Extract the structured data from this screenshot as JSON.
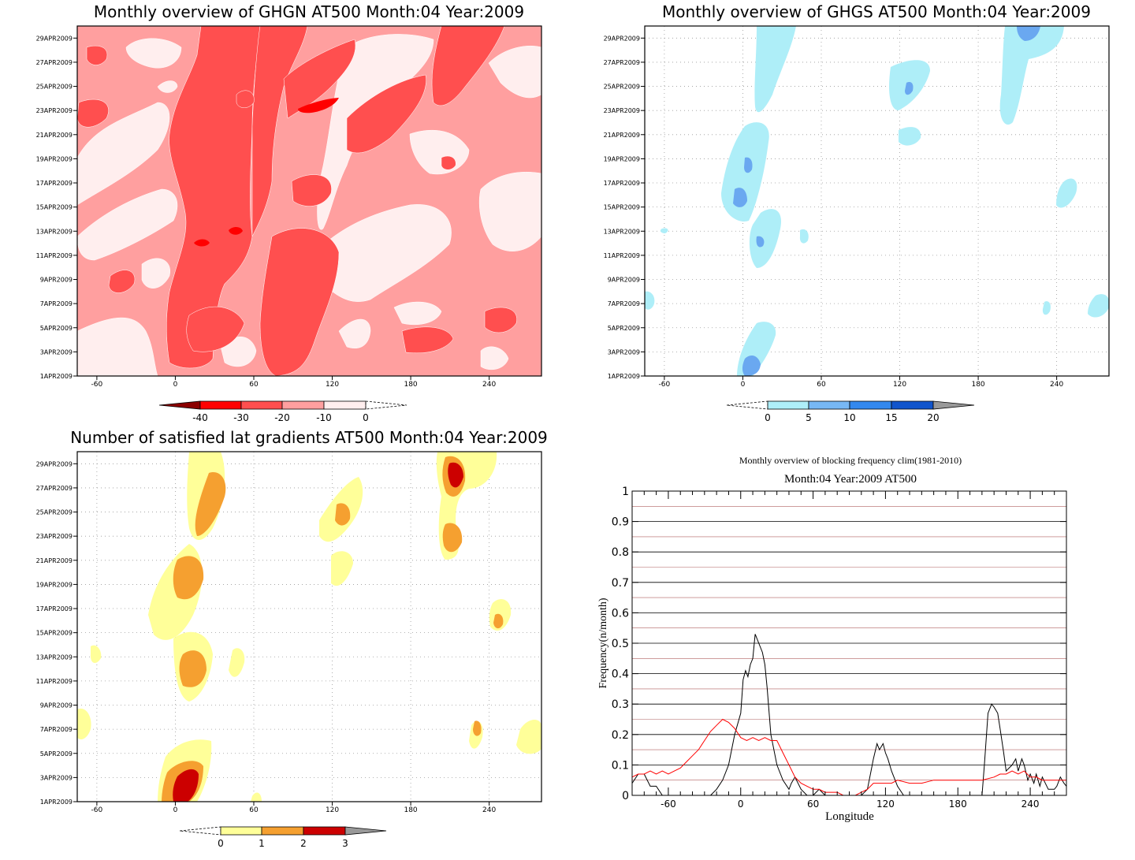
{
  "chart_data": [
    {
      "type": "heatmap",
      "title": "Monthly overview of GHGN AT500 Month:04 Year:2009",
      "x_ticks": [
        "-60",
        "0",
        "60",
        "120",
        "180",
        "240"
      ],
      "x_tick_values": [
        -60,
        0,
        60,
        120,
        180,
        240
      ],
      "xlim": [
        -75,
        280
      ],
      "y_ticks": [
        "1APR2009",
        "3APR2009",
        "5APR2009",
        "7APR2009",
        "9APR2009",
        "11APR2009",
        "13APR2009",
        "15APR2009",
        "17APR2009",
        "19APR2009",
        "21APR2009",
        "23APR2009",
        "25APR2009",
        "27APR2009",
        "29APR2009"
      ],
      "y_tick_values": [
        1,
        3,
        5,
        7,
        9,
        11,
        13,
        15,
        17,
        19,
        21,
        23,
        25,
        27,
        29
      ],
      "ylim": [
        1,
        30
      ],
      "colorbar_labels": [
        "-40",
        "-30",
        "-20",
        "-10",
        "0"
      ],
      "colorbar_colors": [
        "#8b0000",
        "#ff0000",
        "#ff4f4f",
        "#ff9f9f",
        "#ffeeee"
      ],
      "fill_colors": {
        "light": "#ffeeee",
        "mid": "#ff9f9f",
        "strong": "#ff4f4f",
        "peak": "#ff0000"
      }
    },
    {
      "type": "heatmap",
      "title": "Monthly overview of GHGS AT500 Month:04 Year:2009",
      "x_ticks": [
        "-60",
        "0",
        "60",
        "120",
        "180",
        "240"
      ],
      "x_tick_values": [
        -60,
        0,
        60,
        120,
        180,
        240
      ],
      "xlim": [
        -75,
        280
      ],
      "y_ticks": [
        "1APR2009",
        "3APR2009",
        "5APR2009",
        "7APR2009",
        "9APR2009",
        "11APR2009",
        "13APR2009",
        "15APR2009",
        "17APR2009",
        "19APR2009",
        "21APR2009",
        "23APR2009",
        "25APR2009",
        "27APR2009",
        "29APR2009"
      ],
      "y_tick_values": [
        1,
        3,
        5,
        7,
        9,
        11,
        13,
        15,
        17,
        19,
        21,
        23,
        25,
        27,
        29
      ],
      "ylim": [
        1,
        30
      ],
      "colorbar_labels": [
        "0",
        "5",
        "10",
        "15",
        "20"
      ],
      "colorbar_colors": [
        "#aeeef8",
        "#77b7f4",
        "#3388ee",
        "#1155cc",
        "#999999"
      ],
      "fill_colors": {
        "light": "#aeeef8",
        "mid": "#6aa8f0"
      }
    },
    {
      "type": "heatmap",
      "title": "Number of satisfied lat gradients AT500 Month:04 Year:2009",
      "x_ticks": [
        "-60",
        "0",
        "60",
        "120",
        "180",
        "240"
      ],
      "x_tick_values": [
        -60,
        0,
        60,
        120,
        180,
        240
      ],
      "xlim": [
        -75,
        280
      ],
      "y_ticks": [
        "1APR2009",
        "3APR2009",
        "5APR2009",
        "7APR2009",
        "9APR2009",
        "11APR2009",
        "13APR2009",
        "15APR2009",
        "17APR2009",
        "19APR2009",
        "21APR2009",
        "23APR2009",
        "25APR2009",
        "27APR2009",
        "29APR2009"
      ],
      "y_tick_values": [
        1,
        3,
        5,
        7,
        9,
        11,
        13,
        15,
        17,
        19,
        21,
        23,
        25,
        27,
        29
      ],
      "ylim": [
        1,
        30
      ],
      "colorbar_labels": [
        "0",
        "1",
        "2",
        "3"
      ],
      "colorbar_colors": [
        "#ffff99",
        "#f5a030",
        "#cc0000",
        "#999999"
      ],
      "fill_colors": {
        "one": "#ffff99",
        "two": "#f5a030",
        "three": "#cc0000"
      }
    },
    {
      "type": "line",
      "title": "Monthly overview of blocking frequency clim(1981-2010)",
      "subtitle": "Month:04 Year:2009  AT500",
      "xlabel": "Longitude",
      "ylabel": "Frequency(n/month)",
      "xlim": [
        -90,
        270
      ],
      "ylim": [
        0,
        1
      ],
      "x_ticks": [
        "-60",
        "0",
        "60",
        "120",
        "180",
        "240"
      ],
      "x_tick_values": [
        -60,
        0,
        60,
        120,
        180,
        240
      ],
      "y_ticks": [
        "0",
        "0.1",
        "0.2",
        "0.3",
        "0.4",
        "0.5",
        "0.6",
        "0.7",
        "0.8",
        "0.9",
        "1"
      ],
      "y_tick_values": [
        0,
        0.1,
        0.2,
        0.3,
        0.4,
        0.5,
        0.6,
        0.7,
        0.8,
        0.9,
        1
      ],
      "series": [
        {
          "color": "#000000",
          "x": [
            -90,
            -85,
            -80,
            -75,
            -70,
            -65,
            -60,
            -50,
            -40,
            -30,
            -25,
            -20,
            -15,
            -10,
            -5,
            0,
            2,
            4,
            6,
            8,
            10,
            12,
            15,
            18,
            20,
            22,
            25,
            30,
            35,
            40,
            42,
            45,
            50,
            55,
            60,
            65,
            70,
            80,
            90,
            100,
            105,
            108,
            110,
            113,
            115,
            118,
            120,
            122,
            125,
            130,
            135,
            140,
            145,
            150,
            160,
            170,
            180,
            190,
            195,
            200,
            202,
            205,
            208,
            210,
            213,
            215,
            218,
            220,
            225,
            228,
            230,
            233,
            235,
            238,
            240,
            243,
            245,
            248,
            250,
            255,
            260,
            262,
            265,
            268,
            270
          ],
          "y": [
            0.04,
            0.07,
            0.07,
            0.03,
            0.03,
            0,
            0,
            0,
            0,
            0,
            0,
            0.02,
            0.05,
            0.1,
            0.2,
            0.27,
            0.38,
            0.41,
            0.39,
            0.43,
            0.45,
            0.53,
            0.5,
            0.47,
            0.43,
            0.35,
            0.2,
            0.1,
            0.05,
            0.02,
            0.04,
            0.06,
            0.02,
            0,
            0,
            0.02,
            0,
            0,
            0,
            0,
            0.02,
            0.08,
            0.12,
            0.17,
            0.15,
            0.17,
            0.14,
            0.12,
            0.08,
            0.03,
            0,
            0,
            0,
            0,
            0,
            0,
            0,
            0,
            0,
            0,
            0.1,
            0.27,
            0.3,
            0.29,
            0.27,
            0.22,
            0.14,
            0.08,
            0.1,
            0.12,
            0.08,
            0.12,
            0.1,
            0.05,
            0.07,
            0.04,
            0.07,
            0.03,
            0.06,
            0.02,
            0.02,
            0.03,
            0.06,
            0.04,
            0.03
          ]
        },
        {
          "color": "#ff0000",
          "x": [
            -90,
            -85,
            -80,
            -75,
            -70,
            -65,
            -60,
            -55,
            -50,
            -45,
            -40,
            -35,
            -30,
            -25,
            -20,
            -15,
            -10,
            -5,
            0,
            5,
            10,
            15,
            20,
            25,
            30,
            35,
            40,
            45,
            50,
            55,
            60,
            65,
            70,
            75,
            80,
            85,
            90,
            95,
            100,
            105,
            110,
            115,
            120,
            125,
            130,
            140,
            150,
            160,
            170,
            180,
            190,
            200,
            210,
            215,
            220,
            225,
            230,
            235,
            240,
            245,
            250,
            260,
            270
          ],
          "y": [
            0.06,
            0.07,
            0.07,
            0.08,
            0.07,
            0.08,
            0.07,
            0.08,
            0.09,
            0.11,
            0.13,
            0.15,
            0.18,
            0.21,
            0.23,
            0.25,
            0.24,
            0.22,
            0.19,
            0.18,
            0.19,
            0.18,
            0.19,
            0.18,
            0.18,
            0.14,
            0.1,
            0.06,
            0.04,
            0.03,
            0.02,
            0.02,
            0.01,
            0.01,
            0.01,
            0,
            0,
            0,
            0.01,
            0.02,
            0.04,
            0.04,
            0.04,
            0.04,
            0.05,
            0.04,
            0.04,
            0.05,
            0.05,
            0.05,
            0.05,
            0.05,
            0.06,
            0.07,
            0.07,
            0.08,
            0.07,
            0.08,
            0.06,
            0.06,
            0.05,
            0.05,
            0.05
          ]
        }
      ]
    }
  ]
}
